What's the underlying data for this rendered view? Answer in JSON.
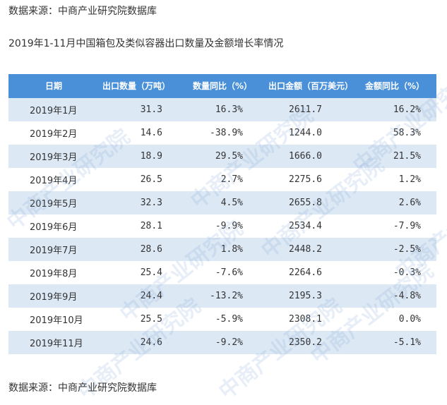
{
  "source_top": "数据来源：中商产业研究院数据库",
  "title": "2019年1-11月中国箱包及类似容器出口数量及金额增长率情况",
  "columns": [
    "日期",
    "出口数量（万吨）",
    "数量同比（%）",
    "出口金额（百万美元）",
    "金额同比（%）"
  ],
  "rows": [
    {
      "month": "2019年1月",
      "qty": "31.3",
      "qty_yoy": "16.3%",
      "amount": "2611.7",
      "amount_yoy": "16.2%"
    },
    {
      "month": "2019年2月",
      "qty": "14.6",
      "qty_yoy": "-38.9%",
      "amount": "1244.0",
      "amount_yoy": "58.3%"
    },
    {
      "month": "2019年3月",
      "qty": "18.9",
      "qty_yoy": "29.5%",
      "amount": "1666.0",
      "amount_yoy": "21.5%"
    },
    {
      "month": "2019年4月",
      "qty": "26.5",
      "qty_yoy": "2.7%",
      "amount": "2275.6",
      "amount_yoy": "1.2%"
    },
    {
      "month": "2019年5月",
      "qty": "32.3",
      "qty_yoy": "4.5%",
      "amount": "2655.8",
      "amount_yoy": "2.6%"
    },
    {
      "month": "2019年6月",
      "qty": "28.1",
      "qty_yoy": "-9.9%",
      "amount": "2534.4",
      "amount_yoy": "-7.9%"
    },
    {
      "month": "2019年7月",
      "qty": "28.6",
      "qty_yoy": "1.8%",
      "amount": "2448.2",
      "amount_yoy": "-2.5%"
    },
    {
      "month": "2019年8月",
      "qty": "25.4",
      "qty_yoy": "-7.6%",
      "amount": "2264.6",
      "amount_yoy": "-0.3%"
    },
    {
      "month": "2019年9月",
      "qty": "24.4",
      "qty_yoy": "-13.2%",
      "amount": "2195.3",
      "amount_yoy": "-4.8%"
    },
    {
      "month": "2019年10月",
      "qty": "25.5",
      "qty_yoy": "-5.9%",
      "amount": "2308.1",
      "amount_yoy": "0.0%"
    },
    {
      "month": "2019年11月",
      "qty": "24.6",
      "qty_yoy": "-9.2%",
      "amount": "2350.2",
      "amount_yoy": "-5.1%"
    }
  ],
  "watermark": "中商产业研究院",
  "source_bottom": "数据来源：中商产业研究院数据库",
  "colors": {
    "header_bg": "#4a90d9",
    "row_alt_bg": "#dde8f5"
  }
}
